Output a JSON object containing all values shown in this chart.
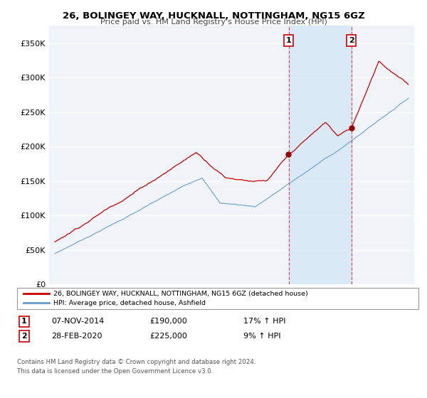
{
  "title": "26, BOLINGEY WAY, HUCKNALL, NOTTINGHAM, NG15 6GZ",
  "subtitle": "Price paid vs. HM Land Registry's House Price Index (HPI)",
  "ylabel_ticks": [
    "£0",
    "£50K",
    "£100K",
    "£150K",
    "£200K",
    "£250K",
    "£300K",
    "£350K"
  ],
  "ytick_values": [
    0,
    50000,
    100000,
    150000,
    200000,
    250000,
    300000,
    350000
  ],
  "ylim": [
    0,
    375000
  ],
  "xlim_start": 1994.5,
  "xlim_end": 2025.5,
  "background_color": "#ffffff",
  "plot_bg_color": "#f0f4f8",
  "grid_color": "#ffffff",
  "line1_color": "#cc0000",
  "line2_color": "#6699cc",
  "transaction1": {
    "date_num": 2014.85,
    "value": 190000,
    "label": "1",
    "pct": "17% ↑ HPI",
    "date_str": "07-NOV-2014",
    "amount": "£190,000"
  },
  "transaction2": {
    "date_num": 2020.16,
    "value": 225000,
    "label": "2",
    "pct": "9% ↑ HPI",
    "date_str": "28-FEB-2020",
    "amount": "£225,000"
  },
  "legend_line1": "26, BOLINGEY WAY, HUCKNALL, NOTTINGHAM, NG15 6GZ (detached house)",
  "legend_line2": "HPI: Average price, detached house, Ashfield",
  "footer1": "Contains HM Land Registry data © Crown copyright and database right 2024.",
  "footer2": "This data is licensed under the Open Government Licence v3.0.",
  "marker_color": "#990000",
  "shade_color": "#d6e8f5"
}
